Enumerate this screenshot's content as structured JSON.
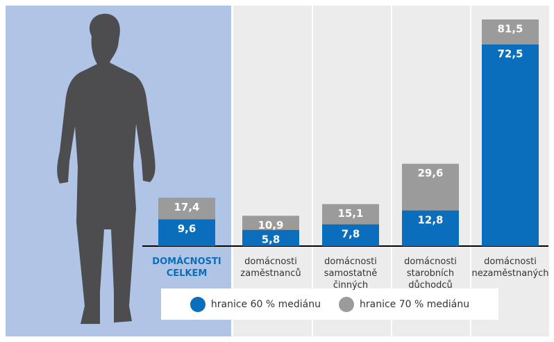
{
  "chart_data": {
    "type": "bar",
    "categories": [
      "DOMÁCNOSTI CELKEM",
      "domácnosti zaměstnanců",
      "domácnosti samostatně činných",
      "domácnosti starobních důchodců",
      "domácnosti nezaměstnaných"
    ],
    "series": [
      {
        "name": "hranice 70 % mediánu",
        "color": "#9b9b9b",
        "values": [
          17.4,
          10.9,
          15.1,
          29.6,
          81.5
        ],
        "value_labels": [
          "17,4",
          "10,9",
          "15,1",
          "29,6",
          "81,5"
        ]
      },
      {
        "name": "hranice 60 % mediánu",
        "color": "#0a6ebd",
        "values": [
          9.6,
          5.8,
          7.8,
          12.8,
          72.5
        ],
        "value_labels": [
          "9,6",
          "5,8",
          "7,8",
          "12,8",
          "72,5"
        ]
      }
    ]
  }
}
